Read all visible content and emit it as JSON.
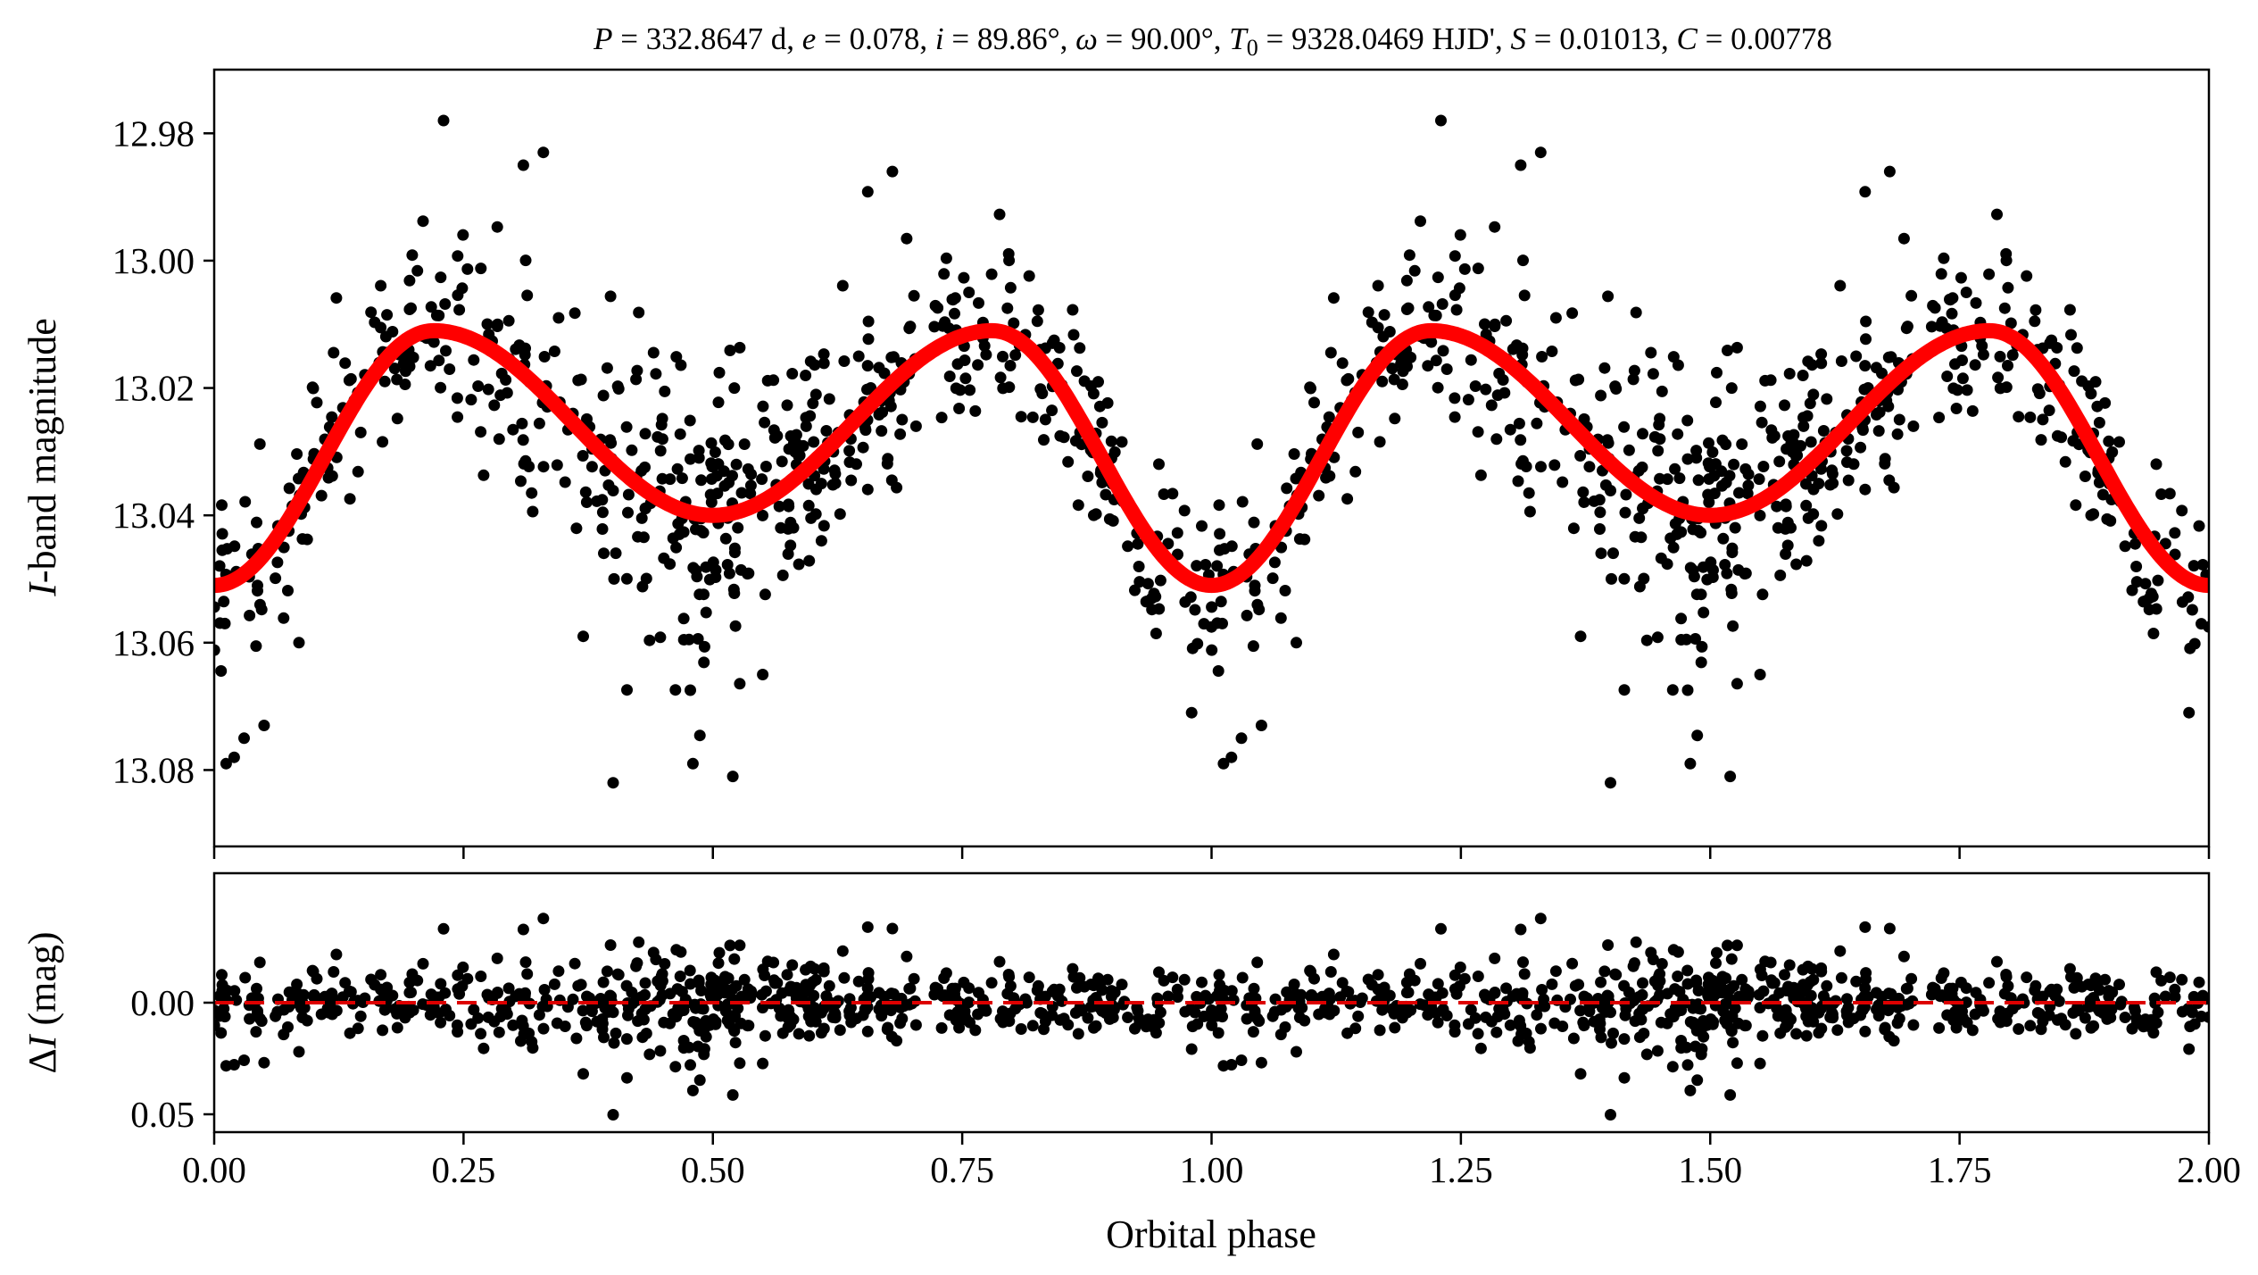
{
  "chart_data": [
    {
      "panel": "top",
      "type": "scatter",
      "title_parts": {
        "P_sym": "P",
        "P_val": " = 332.8647 d, ",
        "e_sym": "e",
        "e_val": " = 0.078, ",
        "i_sym": "i",
        "i_val": " = 89.86°, ",
        "w_sym": "ω",
        "w_val": " = 90.00°, ",
        "T_sym": "T",
        "T_sub": "0",
        "T_val": " = 9328.0469 HJD', ",
        "S_sym": "S",
        "S_val": " = 0.01013, ",
        "C_sym": "C",
        "C_val": " = 0.00778"
      },
      "ylabel_sym": "I",
      "ylabel_rest": "-band magnitude",
      "xlim": [
        0.0,
        2.0
      ],
      "ylim": [
        13.092,
        12.97
      ],
      "y_inverted": true,
      "y_ticks": [
        "12.98",
        "13.00",
        "13.02",
        "13.04",
        "13.06",
        "13.08"
      ],
      "model": {
        "min_phase": 0.0,
        "min_mag": 13.051,
        "secondary_min_mag": 13.04,
        "max_mag": 13.011,
        "max_phases": [
          0.22,
          0.78
        ],
        "color": "#ff0000"
      },
      "points": {
        "color": "#000000",
        "count_per_cycle": 1000,
        "scatter_mag": 0.009,
        "outliers": [
          [
            0.012,
            13.079
          ],
          [
            0.02,
            13.078
          ],
          [
            0.085,
            13.06
          ],
          [
            0.31,
            12.985
          ],
          [
            0.33,
            12.983
          ],
          [
            0.4,
            13.082
          ],
          [
            0.48,
            13.079
          ],
          [
            0.52,
            13.081
          ],
          [
            0.23,
            12.978
          ],
          [
            0.55,
            13.065
          ],
          [
            0.37,
            13.059
          ],
          [
            0.68,
            12.986
          ],
          [
            1.03,
            13.075
          ],
          [
            1.05,
            13.073
          ],
          [
            0.98,
            13.071
          ]
        ]
      },
      "grid": false
    },
    {
      "panel": "bottom",
      "type": "scatter",
      "ylabel_delta": "Δ",
      "ylabel_sym": "I",
      "ylabel_rest": " (mag)",
      "xlabel": "Orbital phase",
      "xlim": [
        0.0,
        2.0
      ],
      "ylim": [
        0.058,
        -0.058
      ],
      "y_inverted": true,
      "y_ticks": [
        "0.00",
        "0.05"
      ],
      "x_ticks": [
        "0.00",
        "0.25",
        "0.50",
        "0.75",
        "1.00",
        "1.25",
        "1.50",
        "1.75",
        "2.00"
      ],
      "zero_line": {
        "value": 0.0,
        "style": "dashed",
        "color": "#dd0000"
      },
      "residual_scatter": 0.012,
      "grid": false
    }
  ]
}
